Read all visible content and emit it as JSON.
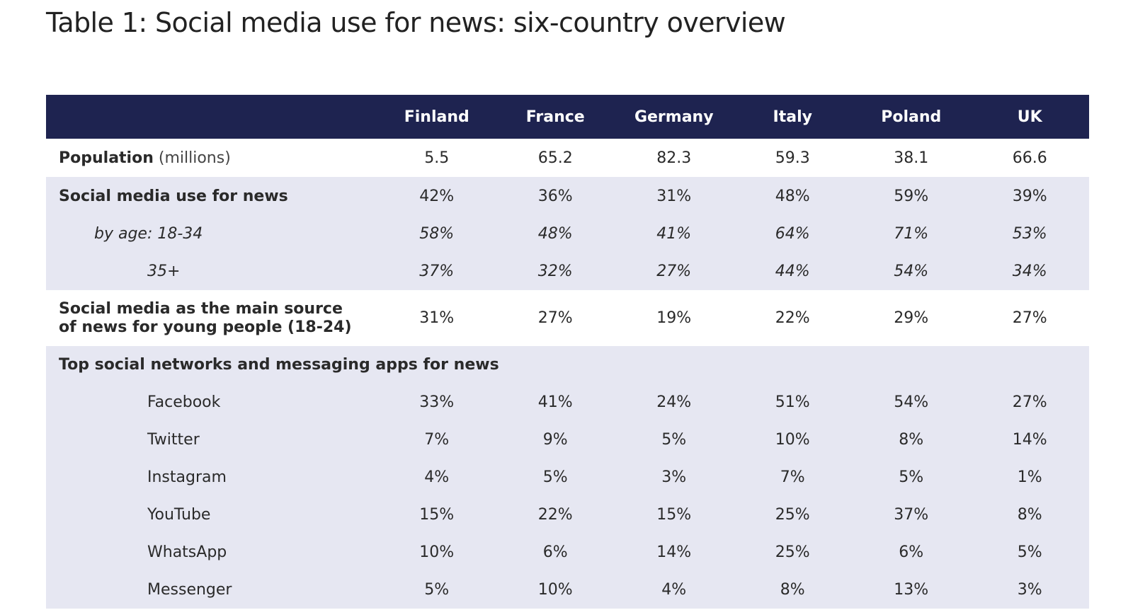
{
  "title": "Table 1: Social media use for news: six-country overview",
  "countries": [
    "Finland",
    "France",
    "Germany",
    "Italy",
    "Poland",
    "UK"
  ],
  "population": {
    "label": "Population",
    "unit": "(millions)",
    "values": [
      "5.5",
      "65.2",
      "82.3",
      "59.3",
      "38.1",
      "66.6"
    ]
  },
  "social_media_news": {
    "label": "Social media use for news",
    "values": [
      "42%",
      "36%",
      "31%",
      "48%",
      "59%",
      "39%"
    ],
    "age_18_34": {
      "label": "by age: 18-34",
      "values": [
        "58%",
        "48%",
        "41%",
        "64%",
        "71%",
        "53%"
      ]
    },
    "age_35_plus": {
      "label": "35+",
      "values": [
        "37%",
        "32%",
        "27%",
        "44%",
        "54%",
        "34%"
      ]
    }
  },
  "main_source_young": {
    "label_line1": "Social media as the main source",
    "label_line2": "of news for young people (18-24)",
    "values": [
      "31%",
      "27%",
      "19%",
      "22%",
      "29%",
      "27%"
    ]
  },
  "top_networks": {
    "label": "Top social networks and messaging apps for news",
    "apps": [
      {
        "name": "Facebook",
        "values": [
          "33%",
          "41%",
          "24%",
          "51%",
          "54%",
          "27%"
        ]
      },
      {
        "name": "Twitter",
        "values": [
          "7%",
          "9%",
          "5%",
          "10%",
          "8%",
          "14%"
        ]
      },
      {
        "name": "Instagram",
        "values": [
          "4%",
          "5%",
          "3%",
          "7%",
          "5%",
          "1%"
        ]
      },
      {
        "name": "YouTube",
        "values": [
          "15%",
          "22%",
          "15%",
          "25%",
          "37%",
          "8%"
        ]
      },
      {
        "name": "WhatsApp",
        "values": [
          "10%",
          "6%",
          "14%",
          "25%",
          "6%",
          "5%"
        ]
      },
      {
        "name": "Messenger",
        "values": [
          "5%",
          "10%",
          "4%",
          "8%",
          "13%",
          "3%"
        ]
      }
    ]
  },
  "colors": {
    "header_bg": "#1e2350",
    "band_grey": "#e6e7f2",
    "band_white": "#ffffff"
  }
}
